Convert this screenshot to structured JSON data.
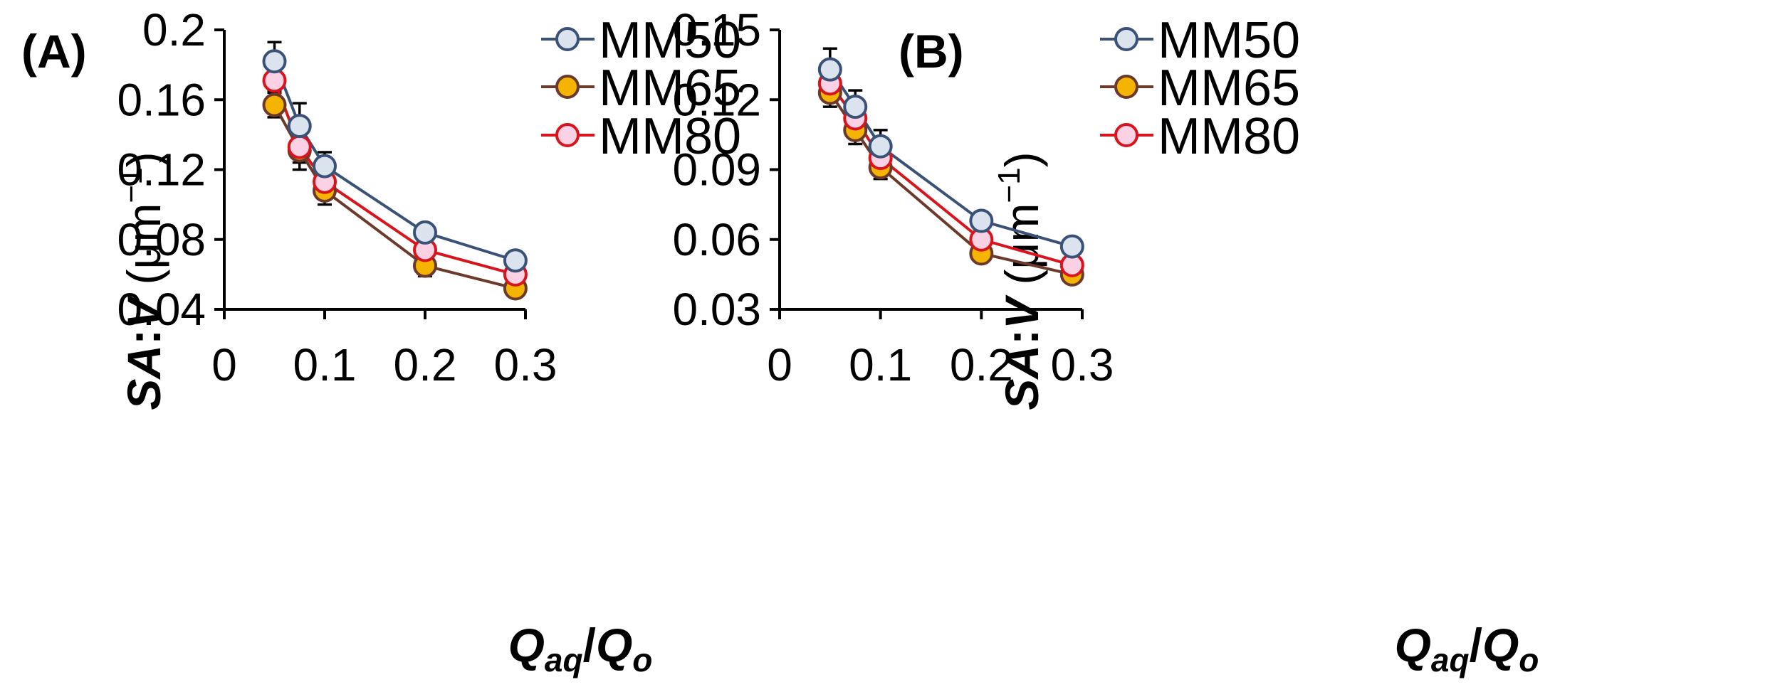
{
  "chart_data": [
    {
      "type": "line",
      "panel_label": "(A)",
      "xlabel": {
        "main": "Q",
        "sub1": "aq",
        "sep": "/",
        "main2": "Q",
        "sub2": "o"
      },
      "ylabel": {
        "italic1": "SA",
        "colon": ":",
        "italic2": "V",
        "unit": " (μm",
        "exp": "−1",
        "close": ")"
      },
      "xlim": [
        0,
        0.3
      ],
      "ylim": [
        0.04,
        0.2
      ],
      "xticks": [
        "0",
        "0.1",
        "0.2",
        "0.3"
      ],
      "xtick_values": [
        0,
        0.1,
        0.2,
        0.3
      ],
      "yticks": [
        "0.04",
        "0.08",
        "0.12",
        "0.16",
        "0.2"
      ],
      "ytick_values": [
        0.04,
        0.08,
        0.12,
        0.16,
        0.2
      ],
      "x": [
        0.05,
        0.075,
        0.1,
        0.2,
        0.29
      ],
      "series": [
        {
          "name": "MM50",
          "values": [
            0.182,
            0.145,
            0.122,
            0.084,
            0.068
          ],
          "errors": [
            0.011,
            0.013,
            0.008,
            0.004,
            0.005
          ],
          "line": "#3a5278",
          "fill": "#dbe3ee",
          "edge": "#3a5278"
        },
        {
          "name": "MM65",
          "values": [
            0.157,
            0.131,
            0.108,
            0.065,
            0.052
          ],
          "errors": [
            0.007,
            0.011,
            0.008,
            0.006,
            0.003
          ],
          "line": "#6b3a2a",
          "fill": "#f5b400",
          "edge": "#6b3a2a"
        },
        {
          "name": "MM80",
          "values": [
            0.171,
            0.133,
            0.113,
            0.074,
            0.06
          ],
          "errors": [
            0.006,
            0.009,
            0.007,
            0.004,
            0.003
          ],
          "line": "#d9141c",
          "fill": "#fbd1e3",
          "edge": "#d9141c"
        }
      ],
      "legend": "top-right"
    },
    {
      "type": "line",
      "panel_label": "(B)",
      "xlabel": {
        "main": "Q",
        "sub1": "aq",
        "sep": "/",
        "main2": "Q",
        "sub2": "o"
      },
      "ylabel": {
        "italic1": "SA",
        "colon": ":",
        "italic2": "V",
        "unit": " (μm",
        "exp": "−1",
        "close": ")"
      },
      "xlim": [
        0,
        0.3
      ],
      "ylim": [
        0.03,
        0.15
      ],
      "xticks": [
        "0",
        "0.1",
        "0.2",
        "0.3"
      ],
      "xtick_values": [
        0,
        0.1,
        0.2,
        0.3
      ],
      "yticks": [
        "0.03",
        "0.06",
        "0.09",
        "0.12",
        "0.15"
      ],
      "ytick_values": [
        0.03,
        0.06,
        0.09,
        0.12,
        0.15
      ],
      "x": [
        0.05,
        0.075,
        0.1,
        0.2,
        0.29
      ],
      "series": [
        {
          "name": "MM50",
          "values": [
            0.133,
            0.117,
            0.1,
            0.068,
            0.057
          ],
          "errors": [
            0.009,
            0.007,
            0.007,
            0.003,
            0.003
          ],
          "line": "#3a5278",
          "fill": "#dbe3ee",
          "edge": "#3a5278"
        },
        {
          "name": "MM65",
          "values": [
            0.123,
            0.107,
            0.091,
            0.054,
            0.045
          ],
          "errors": [
            0.006,
            0.006,
            0.005,
            0.003,
            0.002
          ],
          "line": "#6b3a2a",
          "fill": "#f5b400",
          "edge": "#6b3a2a"
        },
        {
          "name": "MM80",
          "values": [
            0.127,
            0.112,
            0.095,
            0.06,
            0.049
          ],
          "errors": [
            0.005,
            0.005,
            0.004,
            0.003,
            0.002
          ],
          "line": "#d9141c",
          "fill": "#fbd1e3",
          "edge": "#d9141c"
        }
      ],
      "legend": "top-right"
    }
  ]
}
